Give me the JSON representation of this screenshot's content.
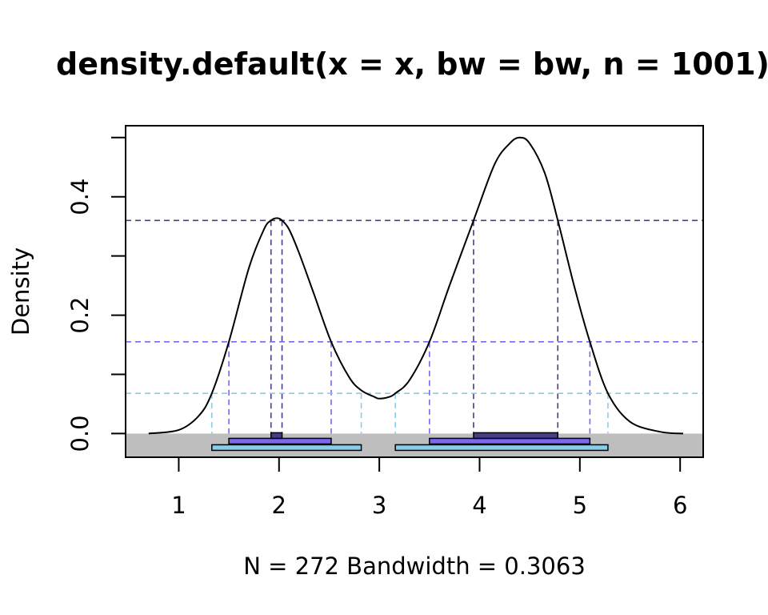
{
  "chart_data": {
    "type": "line",
    "title": "density.default(x = x, bw = bw, n = 1001)",
    "xlabel": "N = 272   Bandwidth = 0.3063",
    "ylabel": "Density",
    "xlim": [
      0.47,
      6.23
    ],
    "ylim": [
      -0.04,
      0.52
    ],
    "x_ticks": [
      1,
      2,
      3,
      4,
      5,
      6
    ],
    "y_ticks": [
      0.0,
      0.1,
      0.2,
      0.3,
      0.4,
      0.5
    ],
    "y_tick_labels": [
      {
        "value": 0.0,
        "label": "0.0"
      },
      {
        "value": 0.2,
        "label": "0.2"
      },
      {
        "value": 0.4,
        "label": "0.4"
      }
    ],
    "density_curve": {
      "x": [
        0.7,
        1.0,
        1.2,
        1.33,
        1.5,
        1.7,
        1.85,
        1.92,
        1.98,
        2.03,
        2.1,
        2.2,
        2.35,
        2.52,
        2.7,
        2.82,
        2.95,
        3.0,
        3.1,
        3.16,
        3.3,
        3.5,
        3.7,
        3.94,
        4.15,
        4.3,
        4.4,
        4.5,
        4.65,
        4.78,
        4.95,
        5.1,
        5.28,
        5.5,
        5.8,
        6.03
      ],
      "y": [
        0.0,
        0.006,
        0.03,
        0.068,
        0.155,
        0.28,
        0.345,
        0.36,
        0.364,
        0.36,
        0.345,
        0.305,
        0.235,
        0.155,
        0.095,
        0.073,
        0.062,
        0.059,
        0.062,
        0.068,
        0.09,
        0.155,
        0.25,
        0.36,
        0.455,
        0.49,
        0.5,
        0.49,
        0.44,
        0.36,
        0.245,
        0.155,
        0.068,
        0.02,
        0.003,
        0.0
      ]
    },
    "hdr_levels": [
      {
        "density_level": 0.36,
        "color": "#483d8b",
        "intervals": [
          [
            1.92,
            2.03
          ],
          [
            3.94,
            4.78
          ]
        ]
      },
      {
        "density_level": 0.155,
        "color": "#7b68ee",
        "intervals": [
          [
            1.5,
            2.52
          ],
          [
            3.5,
            5.1
          ]
        ]
      },
      {
        "density_level": 0.068,
        "color": "#87ceeb",
        "intervals": [
          [
            1.33,
            2.82
          ],
          [
            3.16,
            5.28
          ]
        ]
      }
    ],
    "hdr_band_color": "#bebebe",
    "curve_color": "#000000",
    "grid": false,
    "legend": "none"
  }
}
